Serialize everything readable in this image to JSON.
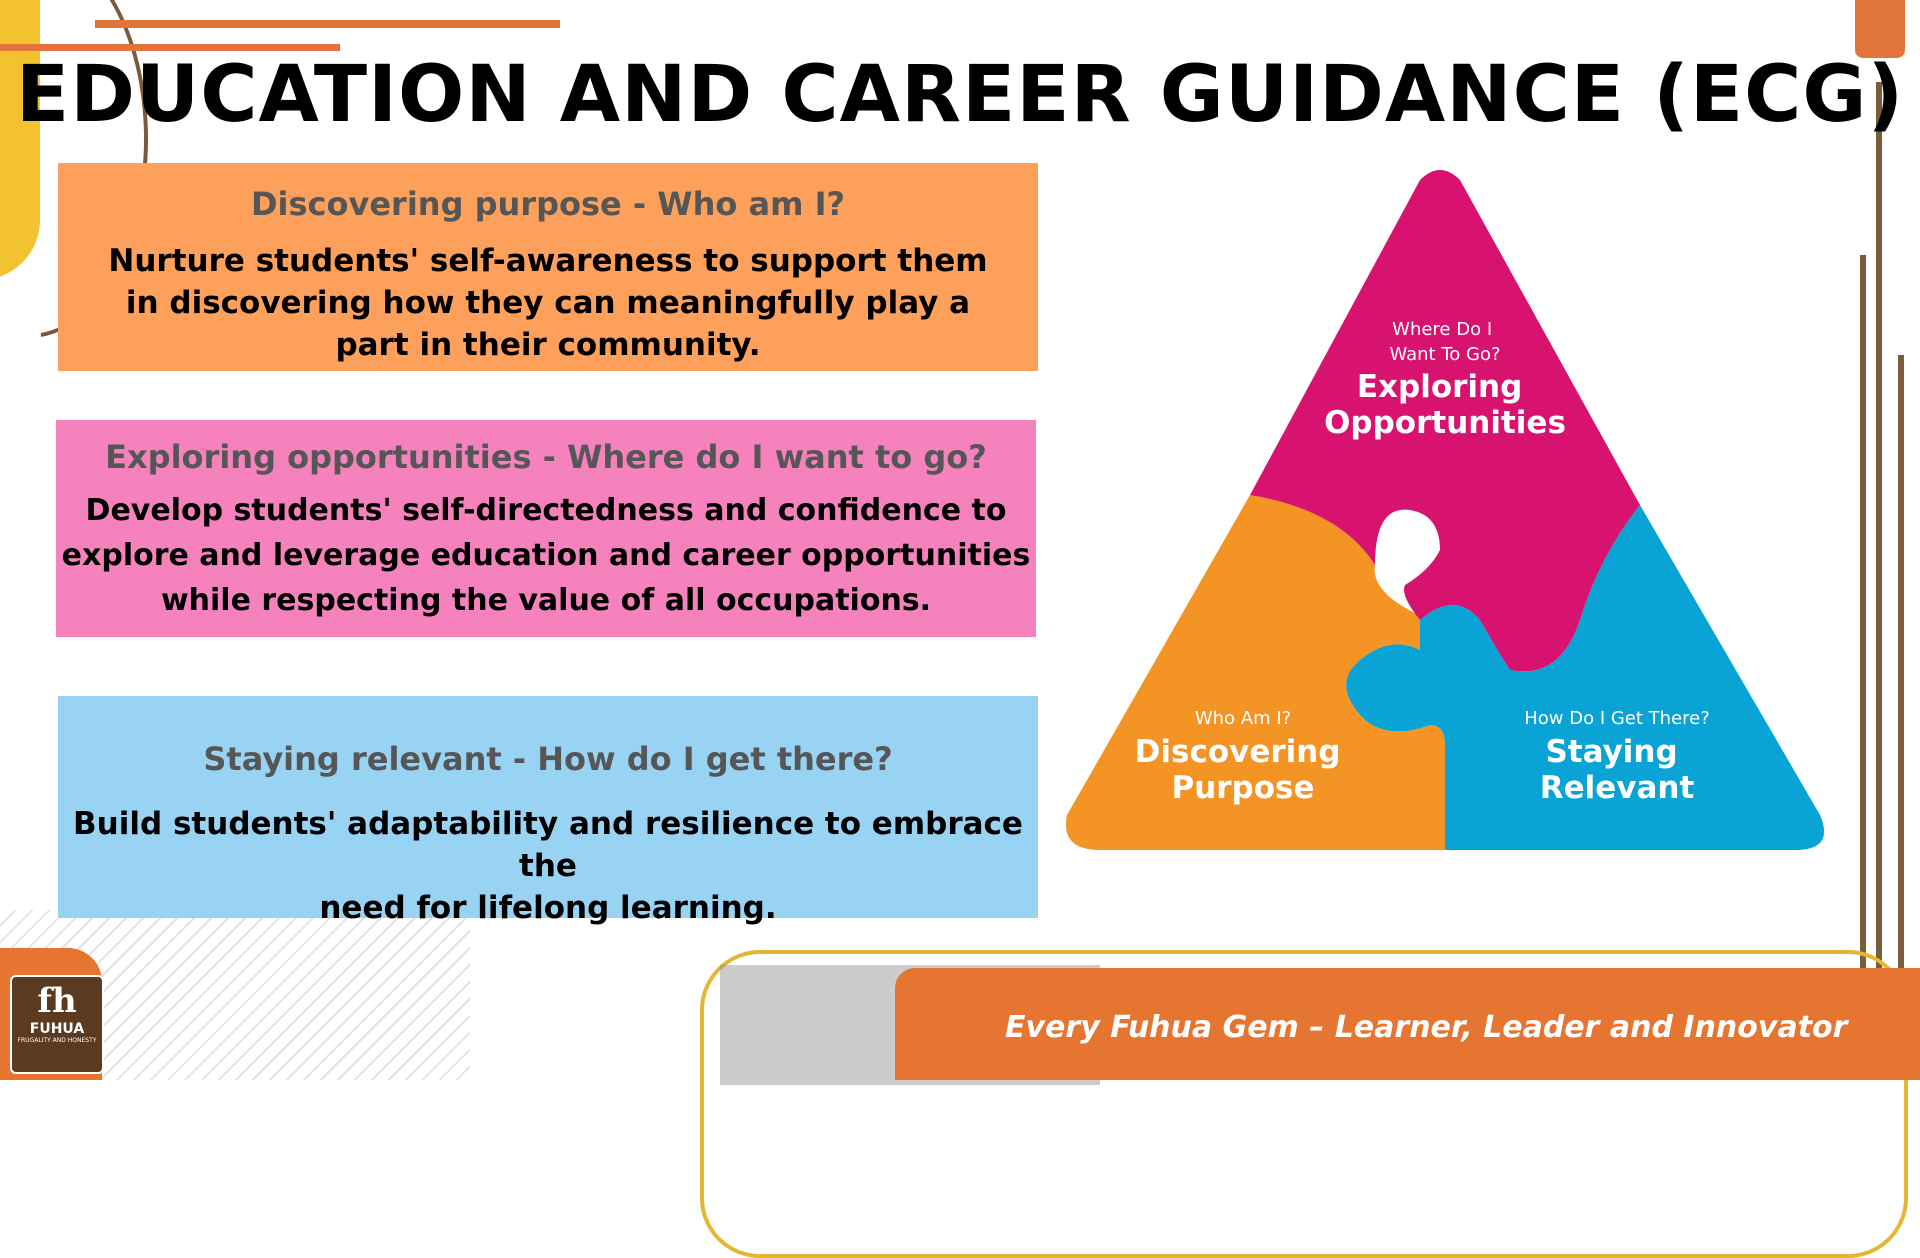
{
  "title": "EDUCATION AND CAREER GUIDANCE (ECG)",
  "boxes": [
    {
      "heading": "Discovering purpose - Who am I?",
      "lines": [
        "Nurture students' self-awareness to support them",
        "in discovering how they can meaningfully play a",
        "part in their community."
      ],
      "color": "#fca05b"
    },
    {
      "heading": "Exploring opportunities - Where do I want to go?",
      "lines": [
        "Develop students' self-directedness and confidence to",
        "explore and leverage education and career opportunities",
        "while respecting the value of all occupations."
      ],
      "color": "#f582bd"
    },
    {
      "heading": "Staying relevant - How do I get there?",
      "lines": [
        "Build students' adaptability and resilience to embrace the",
        "need for lifelong learning."
      ],
      "color": "#99d3f4"
    }
  ],
  "puzzle": {
    "top": {
      "question": [
        "Where Do I",
        "Want To Go?"
      ],
      "title": [
        "Exploring",
        "Opportunities"
      ],
      "color": "#d8136f"
    },
    "left": {
      "question": [
        "Who Am I?"
      ],
      "title": [
        "Discovering",
        "Purpose"
      ],
      "color": "#f39424"
    },
    "right": {
      "question": [
        "How Do I Get There?"
      ],
      "title": [
        "Staying",
        "Relevant"
      ],
      "color": "#0aa3d6"
    }
  },
  "footer": {
    "slogan": "Every Fuhua Gem – Learner, Leader and Innovator",
    "logo_mark": "fh",
    "logo_name": "FUHUA",
    "logo_tagline": "FRUGALITY AND HONESTY"
  }
}
